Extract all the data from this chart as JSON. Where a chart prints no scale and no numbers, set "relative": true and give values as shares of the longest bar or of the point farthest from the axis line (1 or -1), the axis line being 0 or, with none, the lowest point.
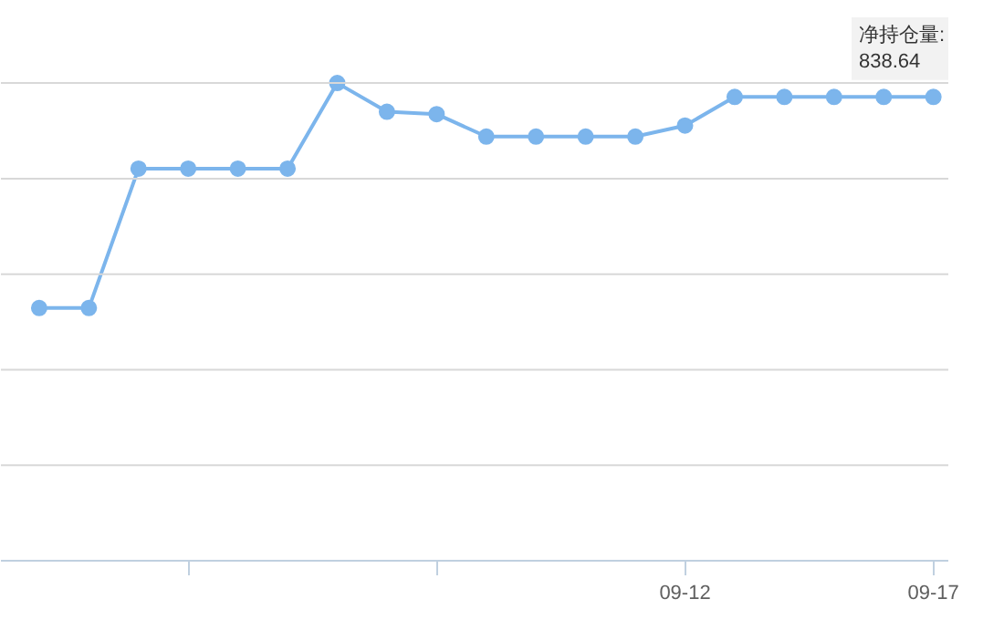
{
  "chart_data": {
    "type": "line",
    "relative": true,
    "grid": "y",
    "marker": "circle",
    "line_style": "solid",
    "categories": [
      null,
      null,
      null,
      null,
      null,
      null,
      null,
      null,
      null,
      null,
      null,
      null,
      null,
      "09-12",
      null,
      null,
      null,
      null,
      "09-17"
    ],
    "series": [
      {
        "color": "#7cb5ec",
        "values": [
          0.529,
          0.529,
          0.821,
          0.821,
          0.821,
          0.821,
          1,
          0.94,
          0.935,
          0.888,
          0.888,
          0.888,
          0.888,
          0.911,
          0.971,
          0.971,
          0.971,
          0.971,
          0.971
        ]
      }
    ],
    "annotations": [
      "净持仓量:\n838.64"
    ]
  }
}
